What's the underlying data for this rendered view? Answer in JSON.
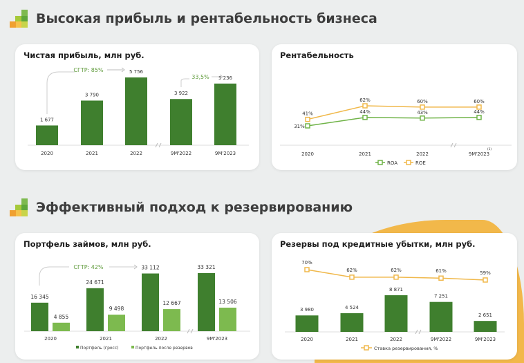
{
  "sections": [
    {
      "title": "Высокая прибыль и рентабельность бизнеса"
    },
    {
      "title": "Эффективный подход к резервированию"
    }
  ],
  "colors": {
    "dark_green": "#3f7f2e",
    "light_green": "#7dba4f",
    "orange": "#f0b84a",
    "cagr_text": "#5e9a3a",
    "text": "#333333"
  },
  "icons": {
    "logo": "stepped-squares-logo"
  },
  "chart_data": [
    {
      "type": "bar",
      "title": "Чистая прибыль, млн руб.",
      "categories": [
        "2020",
        "2021",
        "2022",
        "9M'2022",
        "9M'2023"
      ],
      "values": [
        1677,
        3790,
        5756,
        3922,
        5236
      ],
      "labels": [
        "1 677",
        "3 790",
        "5 756",
        "3 922",
        "5 236"
      ],
      "axis_break_after": "2022",
      "annotations": [
        {
          "text": "СГТР: 85%",
          "from": "2020",
          "to": "2022"
        },
        {
          "text": "33,5%",
          "from": "9M'2022",
          "to": "9M'2023"
        }
      ],
      "color": "#3f7f2e"
    },
    {
      "type": "line",
      "title": "Рентабельность",
      "categories": [
        "2020",
        "2021",
        "2022",
        "9M'2023"
      ],
      "category_footnote": {
        "index": 3,
        "text": "(1)"
      },
      "axis_break_after": "2022",
      "series": [
        {
          "name": "ROA",
          "values": [
            31,
            44,
            43,
            44
          ],
          "labels": [
            "31%",
            "44%",
            "43%",
            "44%"
          ],
          "color": "#6fb347"
        },
        {
          "name": "ROE",
          "values": [
            41,
            62,
            60,
            60
          ],
          "labels": [
            "41%",
            "62%",
            "60%",
            "60%"
          ],
          "color": "#f0b84a"
        }
      ],
      "legend": "bottom"
    },
    {
      "type": "bar",
      "title": "Портфель займов, млн руб.",
      "categories": [
        "2020",
        "2021",
        "2022",
        "9M'2023"
      ],
      "axis_break_after": "2022",
      "series": [
        {
          "name": "Портфель (гросс)",
          "values": [
            16345,
            24671,
            33112,
            33321
          ],
          "labels": [
            "16 345",
            "24 671",
            "33 112",
            "33 321"
          ],
          "color": "#3f7f2e"
        },
        {
          "name": "Портфель после резервов",
          "values": [
            4855,
            9498,
            12667,
            13506
          ],
          "labels": [
            "4 855",
            "9 498",
            "12 667",
            "13 506"
          ],
          "color": "#7dba4f"
        }
      ],
      "annotations": [
        {
          "text": "СГТР: 42%",
          "from": "2020",
          "to": "2022"
        }
      ],
      "legend": "bottom"
    },
    {
      "type": "bar",
      "title": "Резервы под кредитные убытки, млн руб.",
      "categories": [
        "2020",
        "2021",
        "2022",
        "9M'2022",
        "9M'2023"
      ],
      "axis_break_after": "2022",
      "values": [
        3980,
        4524,
        8871,
        7251,
        2651
      ],
      "labels": [
        "3 980",
        "4 524",
        "8 871",
        "7 251",
        "2 651"
      ],
      "color": "#3f7f2e",
      "line_series": {
        "name": "Ставка резервирования, %",
        "values": [
          70,
          62,
          62,
          61,
          59
        ],
        "labels": [
          "70%",
          "62%",
          "62%",
          "61%",
          "59%"
        ],
        "color": "#f0b84a"
      },
      "legend": "bottom"
    }
  ]
}
